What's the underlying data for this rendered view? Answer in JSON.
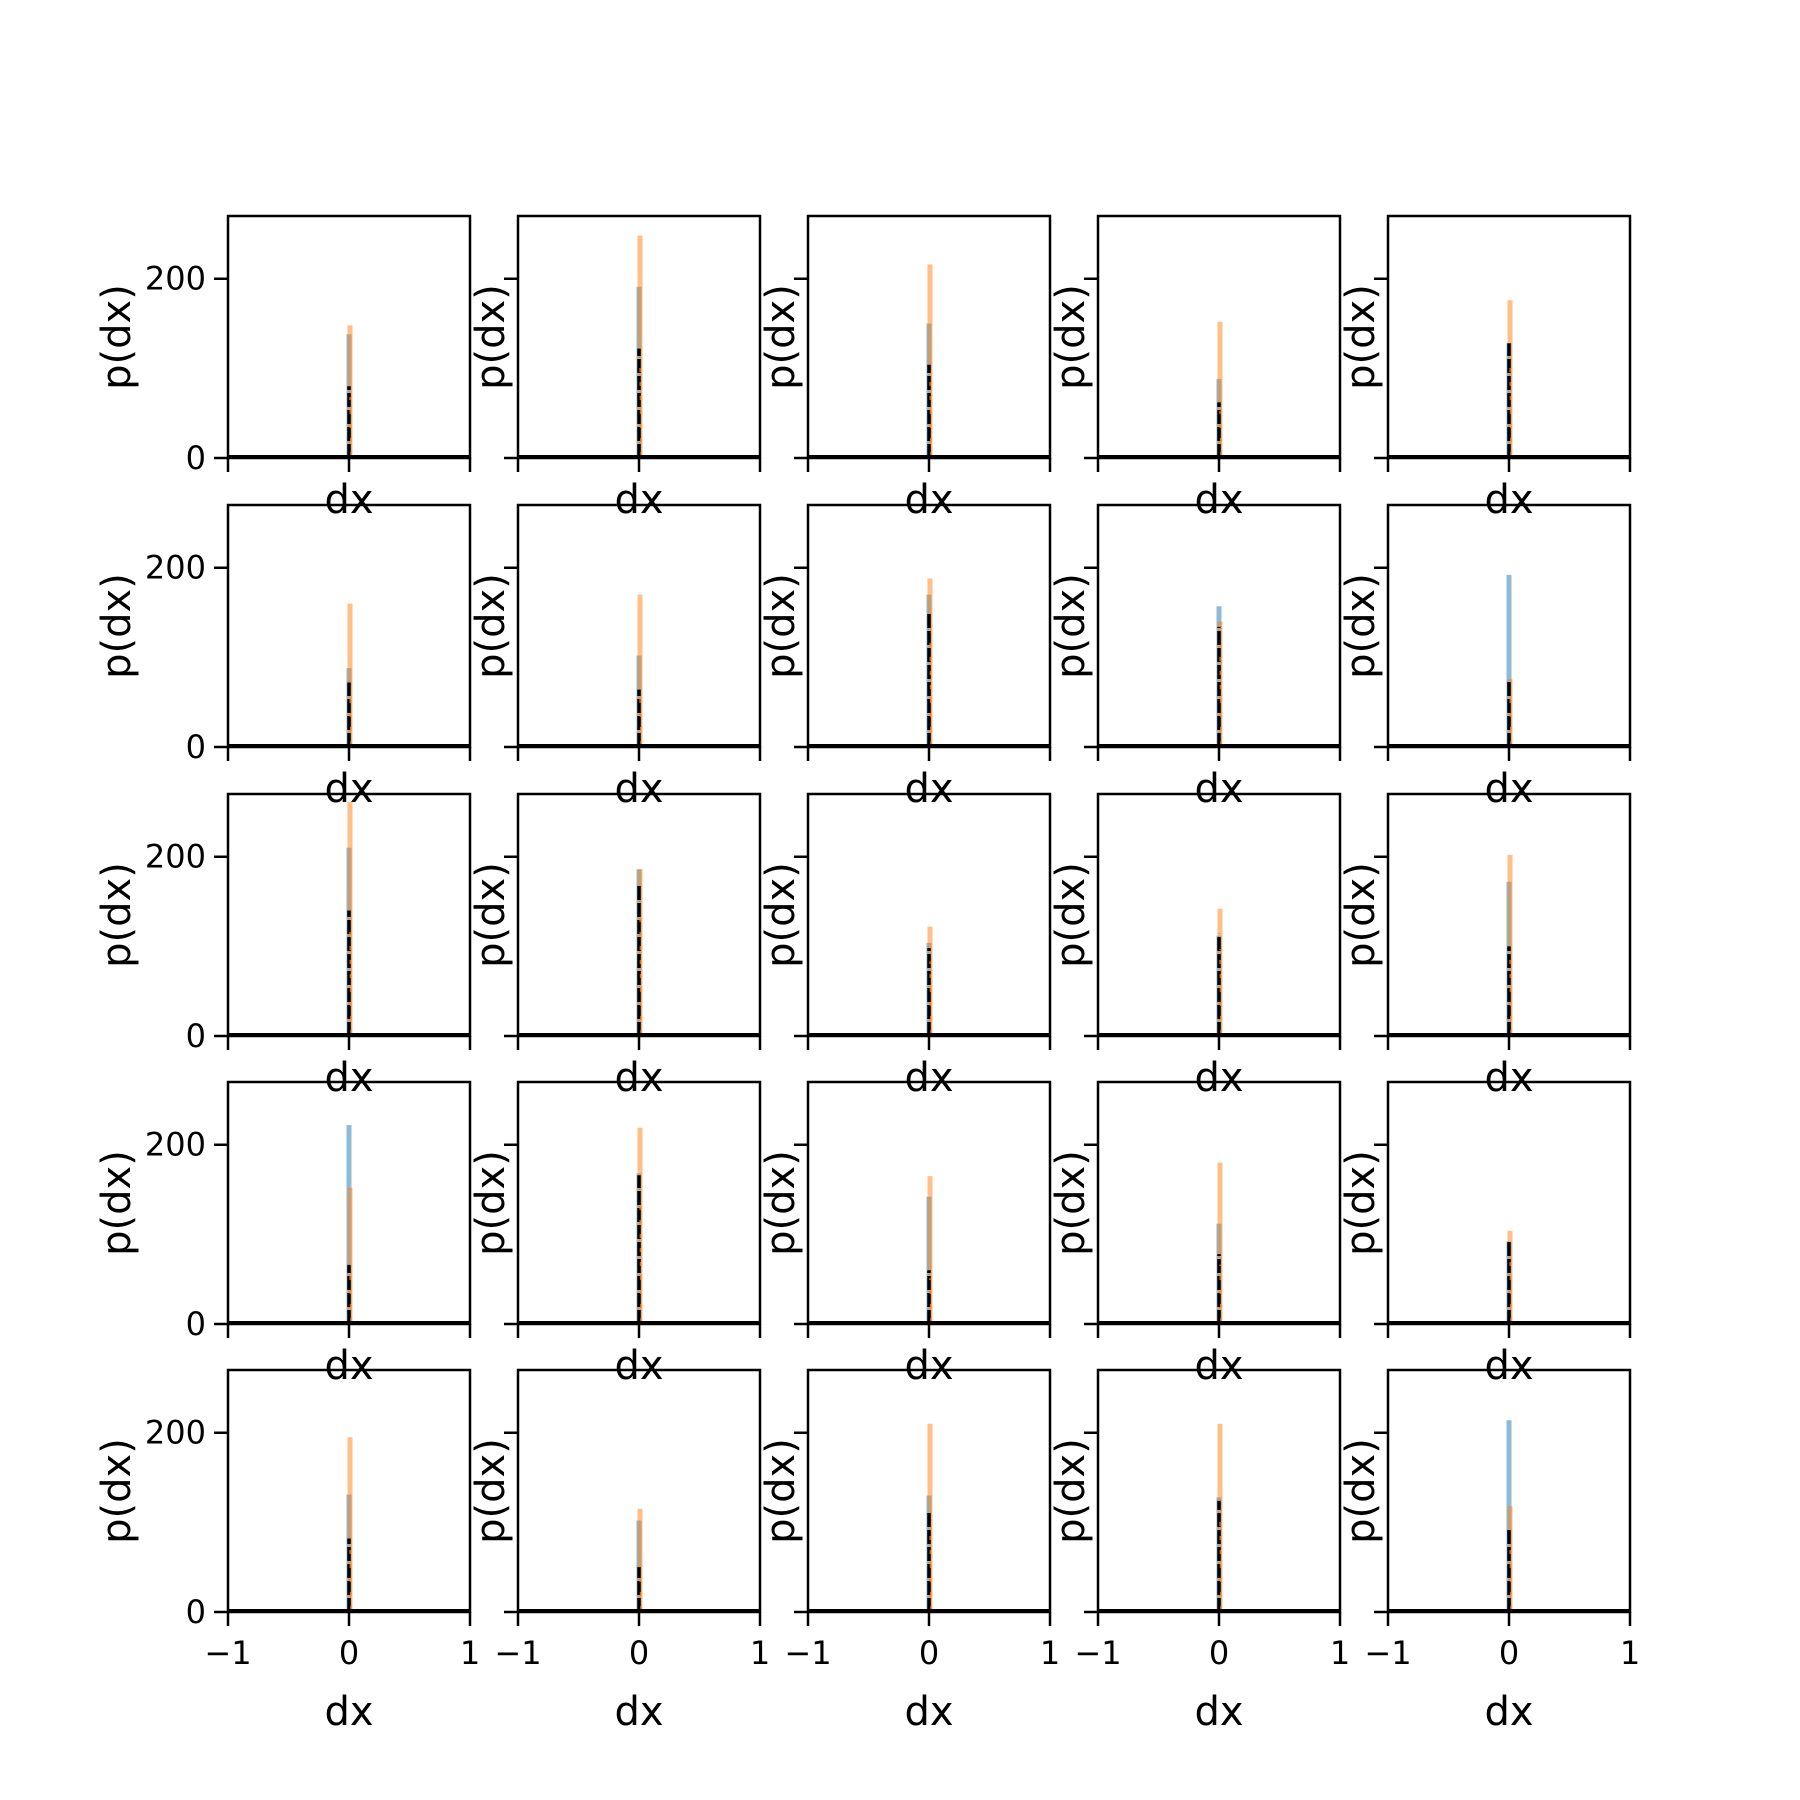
{
  "chart_data": {
    "type": "histogram-grid",
    "rows": 5,
    "cols": 5,
    "xlabel": "dx",
    "ylabel": "p(dx)",
    "xlim": [
      -1,
      1
    ],
    "ylim": [
      0,
      270
    ],
    "xticks": [
      -1,
      0,
      1
    ],
    "xtick_labels": [
      "−1",
      "0",
      "1"
    ],
    "yticks": [
      0,
      200
    ],
    "ytick_labels": [
      "0",
      "200"
    ],
    "grid": false,
    "colors": {
      "blue": "#1f77b4",
      "orange": "#ff7f0e",
      "black": "#000000"
    },
    "series_alpha": 0.5,
    "panels": [
      {
        "blue": 138,
        "orange": 148,
        "black": 80
      },
      {
        "blue": 191,
        "orange": 248,
        "black": 122
      },
      {
        "blue": 150,
        "orange": 216,
        "black": 104
      },
      {
        "blue": 88,
        "orange": 152,
        "black": 62
      },
      {
        "blue": 128,
        "orange": 176,
        "black": 128
      },
      {
        "blue": 88,
        "orange": 160,
        "black": 72
      },
      {
        "blue": 102,
        "orange": 170,
        "black": 64
      },
      {
        "blue": 170,
        "orange": 188,
        "black": 150
      },
      {
        "blue": 157,
        "orange": 140,
        "black": 134
      },
      {
        "blue": 192,
        "orange": 76,
        "black": 74
      },
      {
        "blue": 210,
        "orange": 261,
        "black": 140
      },
      {
        "blue": 186,
        "orange": 186,
        "black": 168
      },
      {
        "blue": 104,
        "orange": 122,
        "black": 98
      },
      {
        "blue": 112,
        "orange": 142,
        "black": 114
      },
      {
        "blue": 172,
        "orange": 202,
        "black": 100
      },
      {
        "blue": 222,
        "orange": 152,
        "black": 66
      },
      {
        "blue": 168,
        "orange": 219,
        "black": 166
      },
      {
        "blue": 142,
        "orange": 165,
        "black": 60
      },
      {
        "blue": 112,
        "orange": 180,
        "black": 78
      },
      {
        "blue": 92,
        "orange": 104,
        "black": 92
      },
      {
        "blue": 131,
        "orange": 195,
        "black": 82
      },
      {
        "blue": 102,
        "orange": 115,
        "black": 50
      },
      {
        "blue": 130,
        "orange": 210,
        "black": 112
      },
      {
        "blue": 128,
        "orange": 210,
        "black": 124
      },
      {
        "blue": 214,
        "orange": 118,
        "black": 92
      }
    ]
  }
}
